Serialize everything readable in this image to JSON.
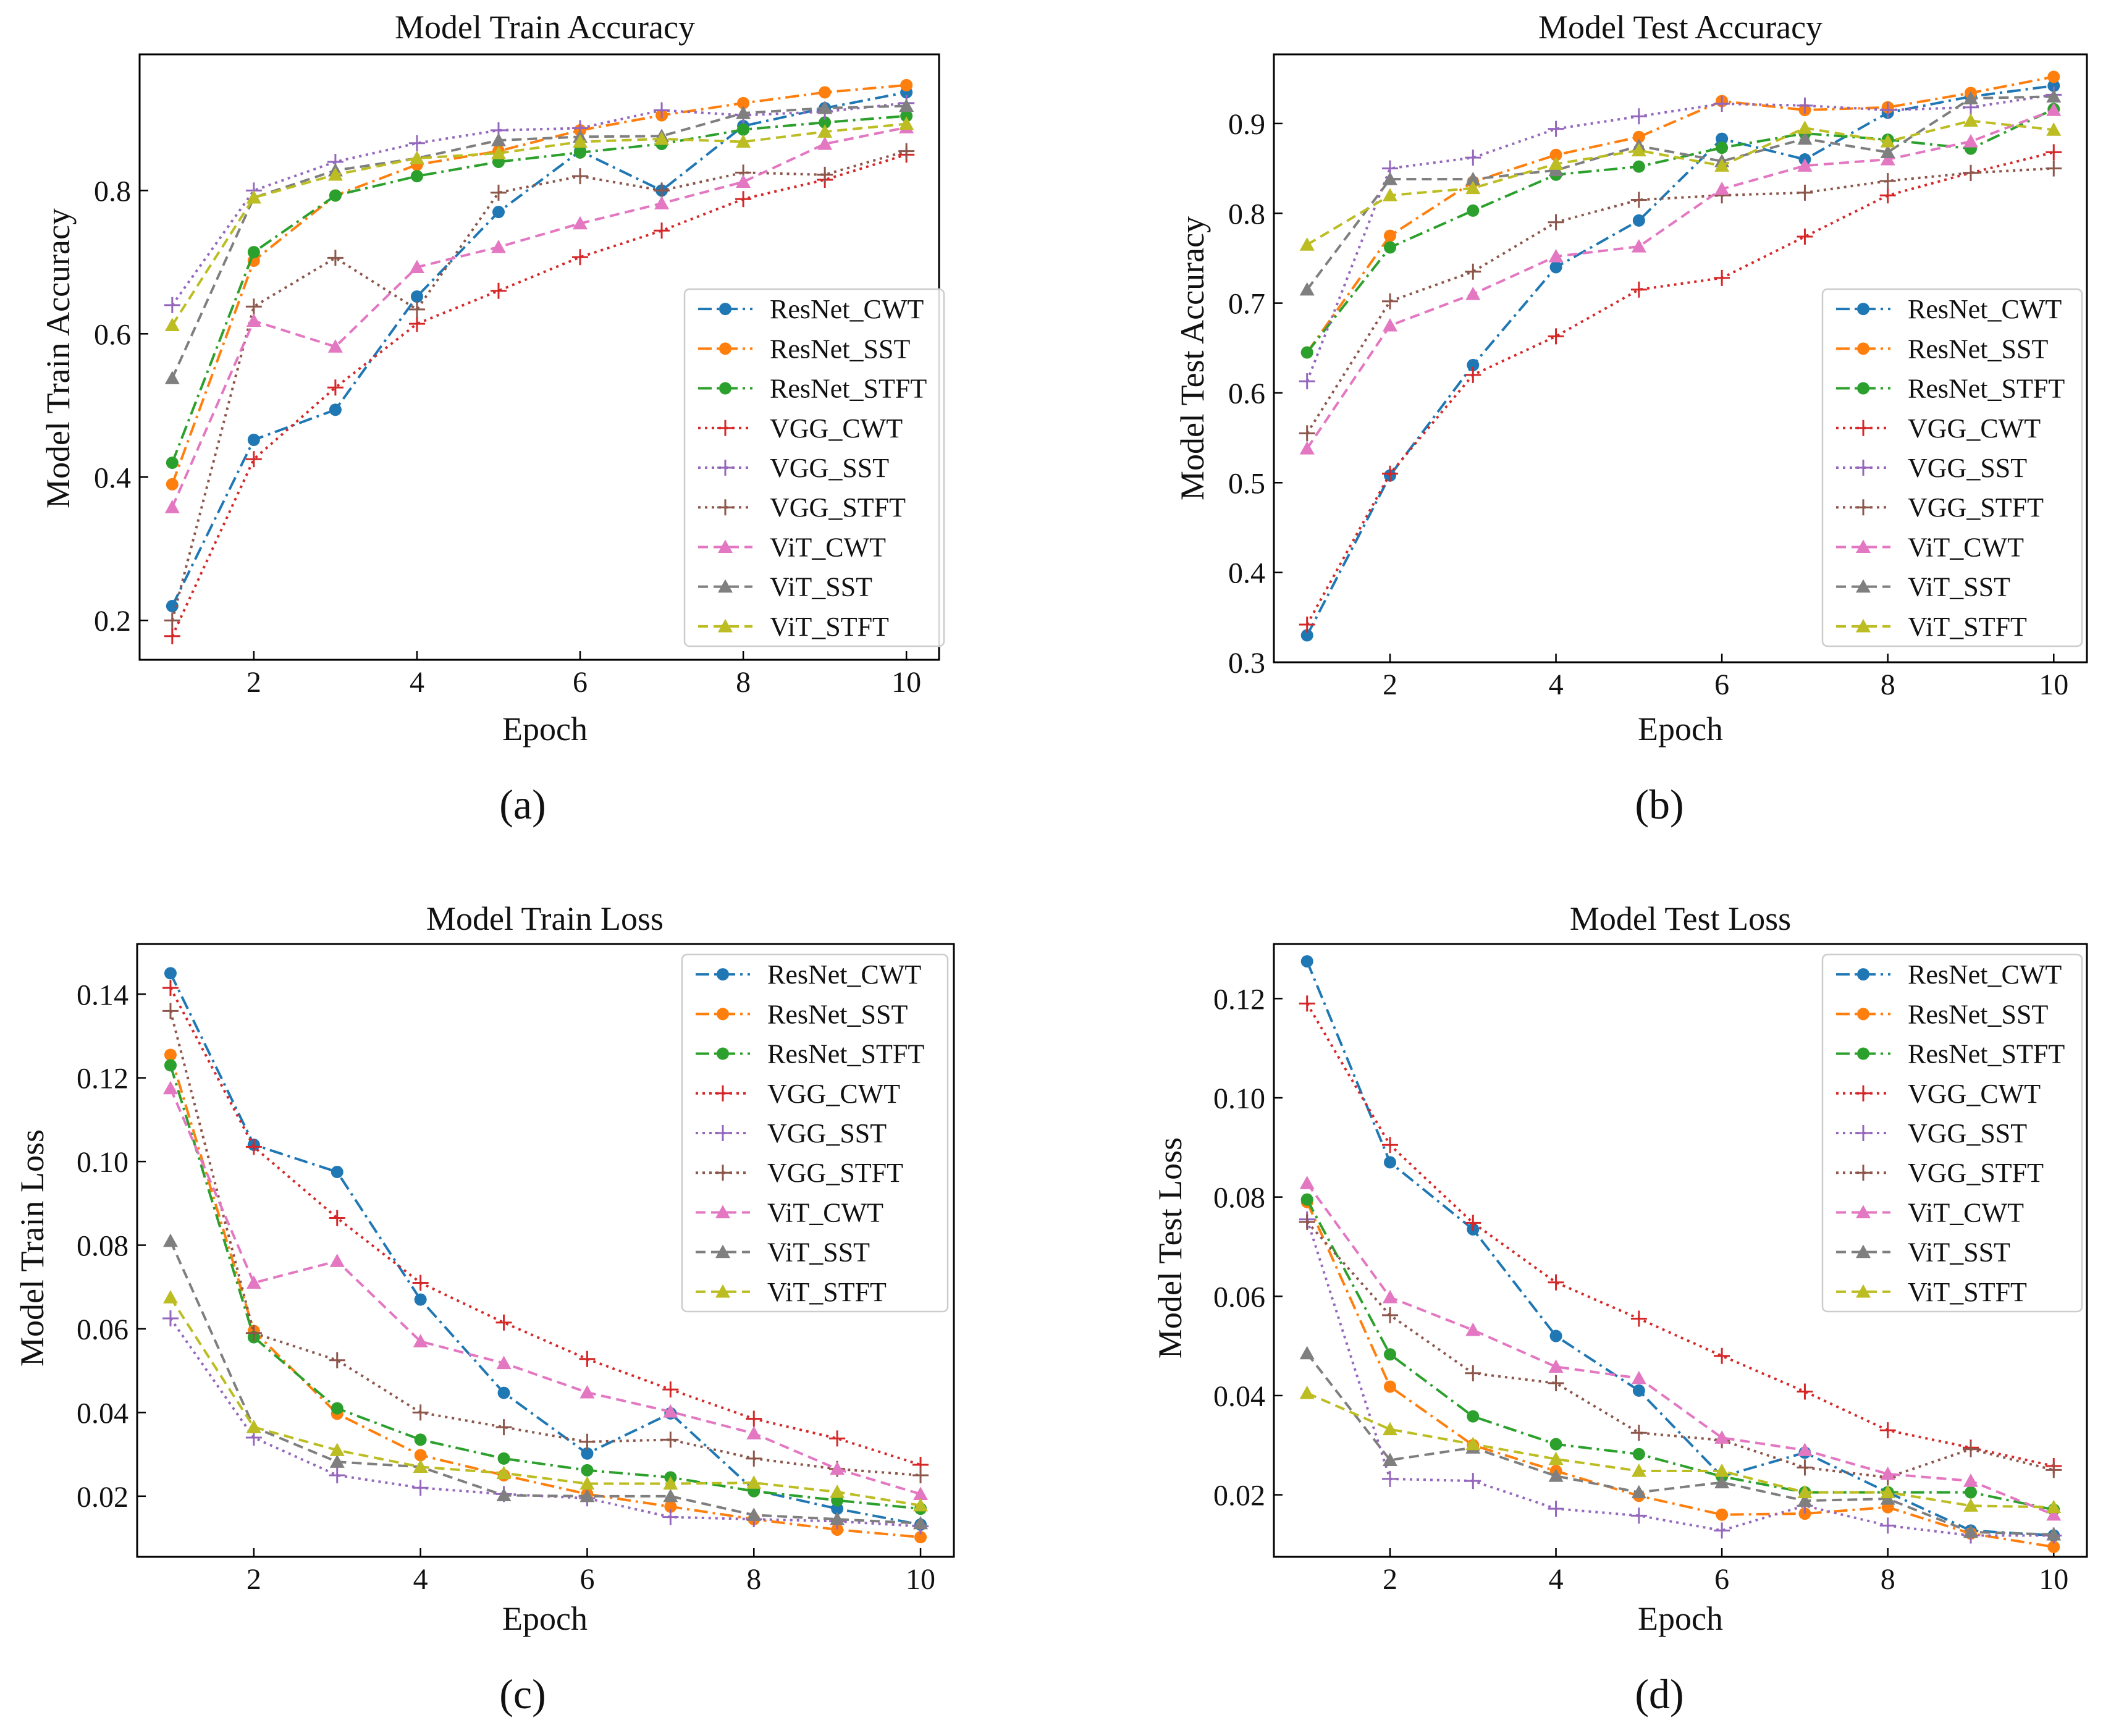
{
  "colors": {
    "ResNet_CWT": "#1f77b4",
    "ResNet_SST": "#ff7f0e",
    "ResNet_STFT": "#2ca02c",
    "VGG_CWT": "#d62728",
    "VGG_SST": "#9467bd",
    "VGG_STFT": "#8c564b",
    "ViT_CWT": "#e377c2",
    "ViT_SST": "#7f7f7f",
    "ViT_STFT": "#bcbd22"
  },
  "chart_data": [
    {
      "type": "line",
      "panel_label": "(a)",
      "title": "Model Train Accuracy",
      "xlabel": "Epoch",
      "ylabel": "Model Train Accuracy",
      "xlim": [
        0.6,
        10.4
      ],
      "ylim": [
        0.145,
        0.99
      ],
      "xticks": [
        2,
        4,
        6,
        8,
        10
      ],
      "yticks": [
        0.2,
        0.4,
        0.6,
        0.8
      ],
      "ytick_labels": [
        "0.2",
        "0.4",
        "0.6",
        "0.8"
      ],
      "legend": "center-right",
      "x": [
        1,
        2,
        3,
        4,
        5,
        6,
        7,
        8,
        9,
        10
      ],
      "series": [
        {
          "name": "ResNet_CWT",
          "marker": "circle",
          "dash": "dashdot",
          "values": [
            0.22,
            0.452,
            0.494,
            0.652,
            0.77,
            0.855,
            0.8,
            0.89,
            0.915,
            0.937
          ]
        },
        {
          "name": "ResNet_SST",
          "marker": "circle",
          "dash": "dashdot",
          "values": [
            0.39,
            0.702,
            0.793,
            0.836,
            0.855,
            0.884,
            0.905,
            0.922,
            0.937,
            0.947
          ]
        },
        {
          "name": "ResNet_STFT",
          "marker": "circle",
          "dash": "dashdot",
          "values": [
            0.42,
            0.714,
            0.793,
            0.82,
            0.84,
            0.853,
            0.865,
            0.885,
            0.895,
            0.904
          ]
        },
        {
          "name": "VGG_CWT",
          "marker": "plus",
          "dash": "dotted",
          "values": [
            0.178,
            0.425,
            0.525,
            0.614,
            0.66,
            0.707,
            0.744,
            0.788,
            0.815,
            0.85
          ]
        },
        {
          "name": "VGG_SST",
          "marker": "plus",
          "dash": "dotted",
          "values": [
            0.64,
            0.8,
            0.84,
            0.866,
            0.884,
            0.887,
            0.912,
            0.905,
            0.91,
            0.922
          ]
        },
        {
          "name": "VGG_STFT",
          "marker": "plus",
          "dash": "dotted",
          "values": [
            0.2,
            0.638,
            0.706,
            0.634,
            0.797,
            0.82,
            0.8,
            0.825,
            0.822,
            0.855
          ]
        },
        {
          "name": "ViT_CWT",
          "marker": "triangle",
          "dash": "dashed",
          "values": [
            0.358,
            0.618,
            0.582,
            0.693,
            0.721,
            0.754,
            0.782,
            0.812,
            0.865,
            0.888
          ]
        },
        {
          "name": "ViT_SST",
          "marker": "triangle",
          "dash": "dashed",
          "values": [
            0.538,
            0.79,
            0.828,
            0.845,
            0.87,
            0.875,
            0.876,
            0.908,
            0.915,
            0.918
          ]
        },
        {
          "name": "ViT_STFT",
          "marker": "triangle",
          "dash": "dashed",
          "values": [
            0.612,
            0.79,
            0.822,
            0.845,
            0.852,
            0.868,
            0.872,
            0.868,
            0.882,
            0.893
          ]
        }
      ]
    },
    {
      "type": "line",
      "panel_label": "(b)",
      "title": "Model Test Accuracy",
      "xlabel": "Epoch",
      "ylabel": "Model Test Accuracy",
      "xlim": [
        0.6,
        10.4
      ],
      "ylim": [
        0.3,
        0.977
      ],
      "xticks": [
        2,
        4,
        6,
        8,
        10
      ],
      "yticks": [
        0.3,
        0.4,
        0.5,
        0.6,
        0.7,
        0.8,
        0.9
      ],
      "ytick_labels": [
        "0.3",
        "0.4",
        "0.5",
        "0.6",
        "0.7",
        "0.8",
        "0.9"
      ],
      "legend": "center-right",
      "x": [
        1,
        2,
        3,
        4,
        5,
        6,
        7,
        8,
        9,
        10
      ],
      "series": [
        {
          "name": "ResNet_CWT",
          "marker": "circle",
          "dash": "dashdot",
          "values": [
            0.33,
            0.508,
            0.631,
            0.74,
            0.792,
            0.883,
            0.86,
            0.912,
            0.93,
            0.942
          ]
        },
        {
          "name": "ResNet_SST",
          "marker": "circle",
          "dash": "dashdot",
          "values": [
            0.645,
            0.775,
            0.835,
            0.865,
            0.885,
            0.925,
            0.915,
            0.918,
            0.934,
            0.952
          ]
        },
        {
          "name": "ResNet_STFT",
          "marker": "circle",
          "dash": "dashdot",
          "values": [
            0.645,
            0.762,
            0.803,
            0.843,
            0.852,
            0.873,
            0.889,
            0.882,
            0.872,
            0.916
          ]
        },
        {
          "name": "VGG_CWT",
          "marker": "plus",
          "dash": "dotted",
          "values": [
            0.342,
            0.51,
            0.62,
            0.663,
            0.715,
            0.728,
            0.774,
            0.82,
            0.845,
            0.868
          ]
        },
        {
          "name": "VGG_SST",
          "marker": "plus",
          "dash": "dotted",
          "values": [
            0.613,
            0.85,
            0.862,
            0.894,
            0.908,
            0.922,
            0.92,
            0.915,
            0.918,
            0.932
          ]
        },
        {
          "name": "VGG_STFT",
          "marker": "plus",
          "dash": "dotted",
          "values": [
            0.555,
            0.702,
            0.735,
            0.79,
            0.815,
            0.82,
            0.823,
            0.836,
            0.845,
            0.85
          ]
        },
        {
          "name": "ViT_CWT",
          "marker": "triangle",
          "dash": "dashed",
          "values": [
            0.538,
            0.675,
            0.71,
            0.752,
            0.763,
            0.827,
            0.853,
            0.86,
            0.88,
            0.915
          ]
        },
        {
          "name": "ViT_SST",
          "marker": "triangle",
          "dash": "dashed",
          "values": [
            0.715,
            0.838,
            0.838,
            0.848,
            0.875,
            0.858,
            0.883,
            0.868,
            0.928,
            0.93
          ]
        },
        {
          "name": "ViT_STFT",
          "marker": "triangle",
          "dash": "dashed",
          "values": [
            0.765,
            0.82,
            0.828,
            0.855,
            0.87,
            0.853,
            0.895,
            0.88,
            0.903,
            0.893
          ]
        }
      ]
    },
    {
      "type": "line",
      "panel_label": "(c)",
      "title": "Model Train Loss",
      "xlabel": "Epoch",
      "ylabel": "Model Train Loss",
      "xlim": [
        0.6,
        10.4
      ],
      "ylim": [
        0.0055,
        0.152
      ],
      "xticks": [
        2,
        4,
        6,
        8,
        10
      ],
      "yticks": [
        0.02,
        0.04,
        0.06,
        0.08,
        0.1,
        0.12,
        0.14
      ],
      "ytick_labels": [
        "0.02",
        "0.04",
        "0.06",
        "0.08",
        "0.10",
        "0.12",
        "0.14"
      ],
      "legend": "top-right",
      "x": [
        1,
        2,
        3,
        4,
        5,
        6,
        7,
        8,
        9,
        10
      ],
      "series": [
        {
          "name": "ResNet_CWT",
          "marker": "circle",
          "dash": "dashdot",
          "values": [
            0.145,
            0.104,
            0.0975,
            0.067,
            0.0447,
            0.0302,
            0.0398,
            0.0215,
            0.017,
            0.0132
          ]
        },
        {
          "name": "ResNet_SST",
          "marker": "circle",
          "dash": "dashdot",
          "values": [
            0.1255,
            0.0595,
            0.0397,
            0.0298,
            0.025,
            0.0205,
            0.0175,
            0.0145,
            0.012,
            0.0102
          ]
        },
        {
          "name": "ResNet_STFT",
          "marker": "circle",
          "dash": "dashdot",
          "values": [
            0.123,
            0.058,
            0.041,
            0.0335,
            0.029,
            0.0262,
            0.0245,
            0.0212,
            0.019,
            0.017
          ]
        },
        {
          "name": "VGG_CWT",
          "marker": "plus",
          "dash": "dotted",
          "values": [
            0.1415,
            0.1035,
            0.0865,
            0.071,
            0.0615,
            0.0528,
            0.0455,
            0.0385,
            0.0338,
            0.0275
          ]
        },
        {
          "name": "VGG_SST",
          "marker": "plus",
          "dash": "dotted",
          "values": [
            0.0625,
            0.034,
            0.025,
            0.022,
            0.0205,
            0.0195,
            0.015,
            0.0145,
            0.014,
            0.0128
          ]
        },
        {
          "name": "VGG_STFT",
          "marker": "plus",
          "dash": "dotted",
          "values": [
            0.136,
            0.059,
            0.0525,
            0.04,
            0.0365,
            0.033,
            0.0335,
            0.029,
            0.0265,
            0.025
          ]
        },
        {
          "name": "ViT_CWT",
          "marker": "triangle",
          "dash": "dashed",
          "values": [
            0.1175,
            0.071,
            0.0762,
            0.057,
            0.0518,
            0.0448,
            0.0402,
            0.035,
            0.0265,
            0.0205
          ]
        },
        {
          "name": "ViT_SST",
          "marker": "triangle",
          "dash": "dashed",
          "values": [
            0.081,
            0.0365,
            0.0282,
            0.027,
            0.0202,
            0.02,
            0.02,
            0.0155,
            0.0145,
            0.0135
          ]
        },
        {
          "name": "ViT_STFT",
          "marker": "triangle",
          "dash": "dashed",
          "values": [
            0.0675,
            0.0365,
            0.031,
            0.027,
            0.0255,
            0.023,
            0.023,
            0.0232,
            0.021,
            0.0178
          ]
        }
      ]
    },
    {
      "type": "line",
      "panel_label": "(d)",
      "title": "Model Test Loss",
      "xlabel": "Epoch",
      "ylabel": "Model Test Loss",
      "xlim": [
        0.6,
        10.4
      ],
      "ylim": [
        0.0075,
        0.131
      ],
      "xticks": [
        2,
        4,
        6,
        8,
        10
      ],
      "yticks": [
        0.02,
        0.04,
        0.06,
        0.08,
        0.1,
        0.12
      ],
      "ytick_labels": [
        "0.02",
        "0.04",
        "0.06",
        "0.08",
        "0.10",
        "0.12"
      ],
      "legend": "top-right",
      "x": [
        1,
        2,
        3,
        4,
        5,
        6,
        7,
        8,
        9,
        10
      ],
      "series": [
        {
          "name": "ResNet_CWT",
          "marker": "circle",
          "dash": "dashdot",
          "values": [
            0.1275,
            0.087,
            0.0735,
            0.052,
            0.041,
            0.0237,
            0.0285,
            0.0205,
            0.0128,
            0.0118
          ]
        },
        {
          "name": "ResNet_SST",
          "marker": "circle",
          "dash": "dashdot",
          "values": [
            0.079,
            0.0418,
            0.03,
            0.0248,
            0.0198,
            0.016,
            0.0162,
            0.0175,
            0.0122,
            0.0095
          ]
        },
        {
          "name": "ResNet_STFT",
          "marker": "circle",
          "dash": "dashdot",
          "values": [
            0.0795,
            0.0483,
            0.0358,
            0.0302,
            0.0282,
            0.0237,
            0.0205,
            0.0205,
            0.0205,
            0.017
          ]
        },
        {
          "name": "VGG_CWT",
          "marker": "plus",
          "dash": "dotted",
          "values": [
            0.119,
            0.0905,
            0.0748,
            0.0628,
            0.0555,
            0.048,
            0.0408,
            0.033,
            0.0295,
            0.0258
          ]
        },
        {
          "name": "VGG_SST",
          "marker": "plus",
          "dash": "dotted",
          "values": [
            0.0755,
            0.0232,
            0.0228,
            0.0172,
            0.0158,
            0.0128,
            0.0178,
            0.0138,
            0.0118,
            0.0118
          ]
        },
        {
          "name": "VGG_STFT",
          "marker": "plus",
          "dash": "dotted",
          "values": [
            0.075,
            0.0562,
            0.0445,
            0.0425,
            0.0325,
            0.031,
            0.0255,
            0.0235,
            0.0292,
            0.025
          ]
        },
        {
          "name": "ViT_CWT",
          "marker": "triangle",
          "dash": "dashed",
          "values": [
            0.0828,
            0.0598,
            0.0532,
            0.0458,
            0.0435,
            0.0315,
            0.029,
            0.0242,
            0.0228,
            0.016
          ]
        },
        {
          "name": "ViT_SST",
          "marker": "triangle",
          "dash": "dashed",
          "values": [
            0.0485,
            0.027,
            0.0295,
            0.0238,
            0.0205,
            0.0225,
            0.0188,
            0.0192,
            0.0125,
            0.012
          ]
        },
        {
          "name": "ViT_STFT",
          "marker": "triangle",
          "dash": "dashed",
          "values": [
            0.0405,
            0.0332,
            0.0302,
            0.0272,
            0.0248,
            0.0248,
            0.0205,
            0.0205,
            0.0178,
            0.0175
          ]
        }
      ]
    }
  ]
}
